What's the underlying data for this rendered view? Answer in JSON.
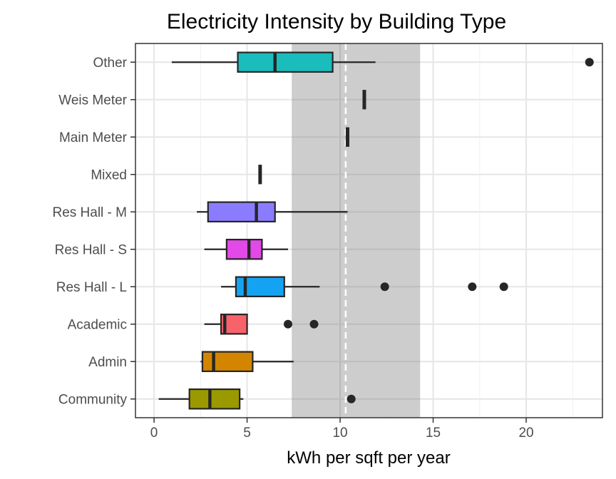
{
  "chart_data": {
    "type": "boxplot",
    "orientation": "horizontal",
    "title": "Electricity Intensity by Building Type",
    "xlabel": "kWh per sqft per year",
    "ylabel": "",
    "xlim": [
      -1,
      24.1
    ],
    "xticks": [
      0,
      5,
      10,
      15,
      20
    ],
    "xtick_labels": [
      "0",
      "5",
      "10",
      "15",
      "20"
    ],
    "grid": true,
    "legend": "none",
    "reference_band": {
      "from": 7.4,
      "to": 14.3,
      "color": "#c8c8c8"
    },
    "reference_line": {
      "value": 10.3,
      "style": "dashed",
      "color": "#ffffff"
    },
    "categories": [
      "Other",
      "Weis Meter",
      "Main Meter",
      "Mixed",
      "Res Hall - M",
      "Res Hall - S",
      "Res Hall - L",
      "Academic",
      "Admin",
      "Community"
    ],
    "boxes": [
      {
        "category": "Other",
        "min": 0.95,
        "q1": 4.5,
        "median": 6.5,
        "q3": 9.6,
        "max": 11.9,
        "outliers": [
          23.4
        ],
        "color": "#1abcbc"
      },
      {
        "category": "Weis Meter",
        "min": 11.3,
        "q1": 11.3,
        "median": 11.3,
        "q3": 11.3,
        "max": 11.3,
        "outliers": [],
        "color": "#17b0e0"
      },
      {
        "category": "Main Meter",
        "min": 10.4,
        "q1": 10.4,
        "median": 10.4,
        "q3": 10.4,
        "max": 10.4,
        "outliers": [],
        "color": "#00b0f6"
      },
      {
        "category": "Mixed",
        "min": 5.7,
        "q1": 5.7,
        "median": 5.7,
        "q3": 5.7,
        "max": 5.7,
        "outliers": [],
        "color": "#00bf7d"
      },
      {
        "category": "Res Hall - M",
        "min": 2.3,
        "q1": 2.9,
        "median": 5.5,
        "q3": 6.5,
        "max": 10.4,
        "outliers": [],
        "color": "#8b7cff"
      },
      {
        "category": "Res Hall - S",
        "min": 2.7,
        "q1": 3.9,
        "median": 5.1,
        "q3": 5.8,
        "max": 7.2,
        "outliers": [],
        "color": "#e348e8"
      },
      {
        "category": "Res Hall - L",
        "min": 3.6,
        "q1": 4.4,
        "median": 4.9,
        "q3": 7.0,
        "max": 8.9,
        "outliers": [
          12.4,
          17.1,
          18.8
        ],
        "color": "#14a3f2"
      },
      {
        "category": "Academic",
        "min": 2.7,
        "q1": 3.6,
        "median": 3.8,
        "q3": 5.0,
        "max": 5.0,
        "outliers": [
          7.2,
          8.6
        ],
        "color": "#f8626a"
      },
      {
        "category": "Admin",
        "min": 2.5,
        "q1": 2.6,
        "median": 3.2,
        "q3": 5.3,
        "max": 7.5,
        "outliers": [],
        "color": "#d48500"
      },
      {
        "category": "Community",
        "min": 0.25,
        "q1": 1.9,
        "median": 3.0,
        "q3": 4.6,
        "max": 4.8,
        "outliers": [
          10.6
        ],
        "color": "#9a9a00"
      }
    ]
  }
}
